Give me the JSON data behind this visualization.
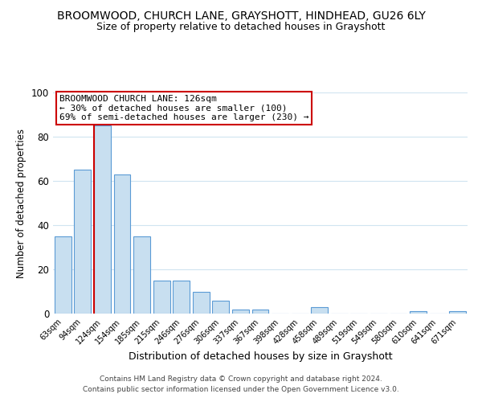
{
  "title": "BROOMWOOD, CHURCH LANE, GRAYSHOTT, HINDHEAD, GU26 6LY",
  "subtitle": "Size of property relative to detached houses in Grayshott",
  "xlabel": "Distribution of detached houses by size in Grayshott",
  "ylabel": "Number of detached properties",
  "bar_labels": [
    "63sqm",
    "94sqm",
    "124sqm",
    "154sqm",
    "185sqm",
    "215sqm",
    "246sqm",
    "276sqm",
    "306sqm",
    "337sqm",
    "367sqm",
    "398sqm",
    "428sqm",
    "458sqm",
    "489sqm",
    "519sqm",
    "549sqm",
    "580sqm",
    "610sqm",
    "641sqm",
    "671sqm"
  ],
  "bar_values": [
    35,
    65,
    85,
    63,
    35,
    15,
    15,
    10,
    6,
    2,
    2,
    0,
    0,
    3,
    0,
    0,
    0,
    0,
    1,
    0,
    1
  ],
  "bar_color": "#c8dff0",
  "bar_edge_color": "#5b9bd5",
  "reference_line_index": 2,
  "reference_line_color": "#cc0000",
  "ylim": [
    0,
    100
  ],
  "annotation_title": "BROOMWOOD CHURCH LANE: 126sqm",
  "annotation_line1": "← 30% of detached houses are smaller (100)",
  "annotation_line2": "69% of semi-detached houses are larger (230) →",
  "annotation_box_color": "#ffffff",
  "annotation_box_edge_color": "#cc0000",
  "footer_line1": "Contains HM Land Registry data © Crown copyright and database right 2024.",
  "footer_line2": "Contains public sector information licensed under the Open Government Licence v3.0.",
  "background_color": "#ffffff",
  "grid_color": "#d0e4f0",
  "title_fontsize": 10,
  "subtitle_fontsize": 9,
  "xlabel_fontsize": 9,
  "ylabel_fontsize": 8.5,
  "footer_fontsize": 6.5,
  "annotation_fontsize": 8
}
